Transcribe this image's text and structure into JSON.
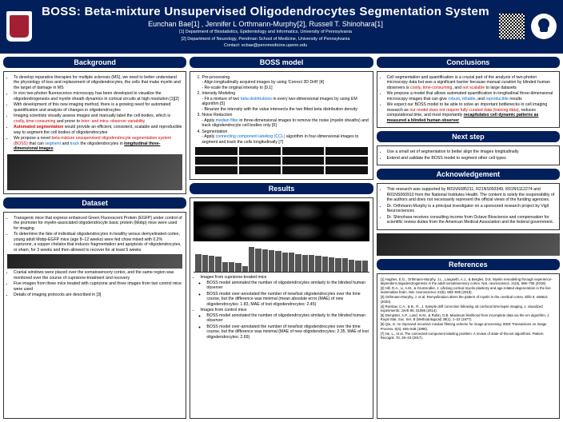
{
  "header": {
    "title": "BOSS: Beta-mixture Unsupervised Oligodendrocytes Segmentation System",
    "authors": "Eunchan Bae[1] , Jennifer L Orthmann-Murphy[2], Russell T. Shinohara[1]",
    "affil1": "[1] Department of Biostatistics, Epidemiology and Informatics, University of Pennsylvania",
    "affil2": "[2] Department of Neurology, Perelman School of Medicine, University of Pennsylvania",
    "contact": "Contact: ecbae@pennmedicine.upenn.edu"
  },
  "sections": {
    "background": "Background",
    "dataset": "Dataset",
    "bossmodel": "BOSS model",
    "results": "Results",
    "conclusions": "Conclusions",
    "nextstep": "Next step",
    "ack": "Acknowledgement",
    "refs": "References"
  },
  "background": {
    "b1a": "To develop reparative therapies for multiple sclerosis (MS), we need to better understand the physiology of loss and replacement of oligodendrocytes, the cells that make myelin and the target of damage in MS",
    "b2": "In vivo two-photon fluorescence microscopy has been developed to visualize the oligodendrogenesis and myelin sheath dynamics in cortical circuits at high resolution [1][2]",
    "b3": "With development of this new imaging method, there is a growing need for automated quantification and analysis of changes in oligodendrocytes",
    "b4a": "Imaging scientists visually assess images and manually label the cell bodies, which is ",
    "b4b": "costly, time-consuming",
    "b4c": " and prone to ",
    "b4d": "inter- and intra- observer variability",
    "b5a": "Automated segmentation",
    "b5b": " would provide an efficient, consistent, scalable and reproducible way to segment the cell bodies of oligodendrocytes",
    "b6a": "We propose a novel ",
    "b6b": "beta-mixture unsupervised oligodendrocyte segmentation system (BOSS)",
    "b6c": " that can ",
    "b6d": "segment",
    "b6e": " and ",
    "b6f": "track",
    "b6g": " the oligodendrocytes in ",
    "b6h": "longitudinal three-dimensional images"
  },
  "dataset": {
    "d1": "Transgenic mice that express enhanced Green Fluorescent Protein (EGFP) under control of the promoter for myelin-associated oligodendrocyte basic protein (Mobp) mice were used for imaging",
    "d2": "To determine the fate of individual oligodendrocytes in healthy versus demyelinated cortex, young adult Mobp-EGFP mice (age 8–12 weeks) were fed chow mixed with 0.2% cuprizone, a copper chelator that induces fragmentation and apoptosis of oligodendrocytes, or sham, for 3 weeks and then allowed to recover for at least 5 weeks",
    "d3": "Cranial windows were placed over the somatosensory cortex, and the same region was monitored over the course of cuprizone-treatment and recovery",
    "d4": "Five images from three mice treated with cuprizone and three images from two control mice were used",
    "d5": "Details of imaging protocols are described in [3]"
  },
  "model": {
    "s1": "Pre-processing",
    "s1a": "- Align longitudinally acquired images by using 'Correct 3D Drift' [4]",
    "s1b": "- Re-scale the original intensity to [0,1]",
    "s2": "Intensity Modeling",
    "s2a": "- Fit a mixture of two ",
    "s2ab": "beta distributions",
    "s2ac": " in every two-dimensional images by using EM algorithm [5]",
    "s2b": "- Binarize the intensity with the value intersects the two fitted beta distribution density",
    "s3": "Noise Reduction",
    "s3a": "- Apply ",
    "s3ab": "median filter",
    "s3ac": " in three-dimensional images to remove the noise (myelin sheaths) and track oligodendrocyte cell bodies only [6]",
    "s4": "Segmentation",
    "s4a": "- Apply ",
    "s4ab": "connecting component labeling (CCL)",
    "s4ac": " algorithm in four-dimensional images to segment and track the cells longitudinally [7]"
  },
  "results": {
    "r1": "Images from cuprizone-treated mice",
    "r1a": "BOSS model annotated the number of oligodendrocytes similarly to the blinded human observer",
    "r1b": "BOSS model over-annotated the number of new/lost oligodendrocytes over the time course, but the difference was minimal (mean absolute error (MAE) of new oligodendrocytes: 1.83, MAE of lost oligodendrocytes: 2.45)",
    "r2": "Images from control mice",
    "r2a": "BOSS model annotated the number of oligodendrocytes similarly to the blinded human observer",
    "r2b": "BOSS model over-annotated the number of new/lost oligodendrocytes over the time course, but the difference was minimal (MAE of new oligodendrocytes: 2.35, MAE of lost oligodendrocytes: 2.69)",
    "bars": [
      65,
      60,
      58,
      55,
      35,
      34,
      33,
      22,
      90,
      85,
      80,
      78,
      75,
      70,
      68,
      65,
      62,
      60,
      58,
      55,
      52,
      50,
      48,
      45,
      42,
      40
    ],
    "bar_color": "#555555"
  },
  "conclusions": {
    "c1a": "Cell segmentation and quantification is a crucial part of the analysis of two-photon microscopy data but was a significant barrier because manual curation by blinded human observers is ",
    "c1b": "costly, time-consuming",
    "c1c": ", and ",
    "c1d": "not scalable",
    "c1e": " to large datasets",
    "c2a": "We propose a model that allows automated quantification in longitudinal three-dimensional microscopy images that can give ",
    "c2b": "robust",
    "c2c": ", ",
    "c2d": "reliable",
    "c2e": ", and ",
    "c2f": "reproducible",
    "c2g": " results",
    "c3a": "We expect our BOSS model to be able to solve an important bottlenecks in cell imaging research as ",
    "c3b": "our model does not require fully curated data (training data)",
    "c3c": ", reduces computational time, and most importantly ",
    "c3d": "recapitulates cell dynamic patterns as measured a blinded human observer"
  },
  "nextstep": {
    "n1": "Use a small set of segmentation to better align the images longitudinally",
    "n2": "Extend and validate the BOSS model to segment other cell types"
  },
  "ack": {
    "a1": "This research was supported by R01NS085211, R21NS093349, R01NS112274 and R01NS060910 from the National Institutes Health. The content is solely the responsibility of the authors and does not necessarily represent the official views of the funding agencies.",
    "a2": "Dr. Orthmann-Murphy is a principal investigator on a sponsored research project by Vigil Neurosciences",
    "a3": "Dr. Shinohara receives consulting income from Octave Bioscience and compensation for scientific review duties from the American Medical Association and the federal government."
  },
  "refs": {
    "r1": "[1] Hughes, E.G., Orthmann-Murphy, J.L., Langseth, A.J., & Bergles, D.E. Myelin remodeling through experience-dependent oligodendrogenesis in the adult somatosensory cortex. Nat. neuroscience. 21(5), 696–706 (2018).",
    "r2": "[2] Hill, R.A., Li, A.M., & Grutzendler, J. Lifelong cortical myelin plasticity and age-related degeneration in the live mammalian brain. Nat. neuroscience 21(5), 683–695 (2018).",
    "r3": "[3] Orthmann-Murphy, J. et al. Remyelination alters the pattern of myelin in the cerebral cortex. Elife 9, e56621 (2020).",
    "r4": "[4] Parslow, C.A., & B., R., J. Sample drift correction following 4d confocal time-lapse imaging. J. visualized experiments: JoVE 86, 51086 (2014).",
    "r5": "[5] Dempster, A.P., Laird, N.M., & Rubin, D.B. Maximum likelihood from incomplete data via the em algorithm. J. Royal Stat. Soc. Ser. B (Methodological) 39(1), 1–22 (1977).",
    "r6": "[6] Qiu, G. An improved recursive median filtering scheme for image processing. IEEE Transactions on Image Process. 5(4), 646–648 (1996).",
    "r7": "[7] He, L., et al. The connected-component labeling problem: A review of state-of-the-art algorithms. Pattern Recognit. 70, 25–43 (2017)."
  }
}
